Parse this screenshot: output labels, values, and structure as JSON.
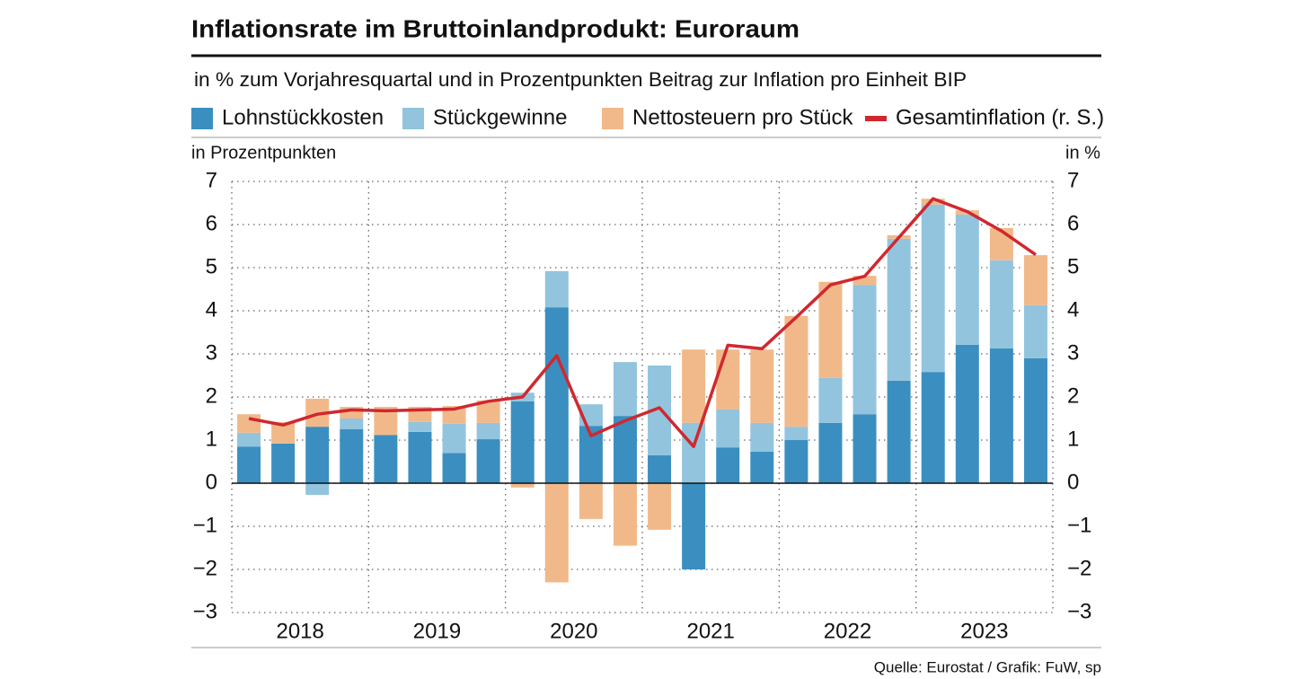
{
  "chart_data": {
    "type": "bar",
    "title": "Inflationsrate im Bruttoinlandprodukt: Euroraum",
    "subtitle": "in % zum Vorjahresquartal und in Prozentpunkten Beitrag zur Inflation pro Einheit BIP",
    "y_label": "in Prozentpunkten",
    "y2_label": "in %",
    "source": "Quelle: Eurostat / Grafik: FuW, sp",
    "x_labels": [
      "2018",
      "2019",
      "2020",
      "2021",
      "2022",
      "2023"
    ],
    "series": [
      {
        "name": "Lohnstückkosten",
        "color": "#3a8fc0",
        "values": [
          0.85,
          0.92,
          1.31,
          1.25,
          1.12,
          1.19,
          0.7,
          1.02,
          1.9,
          4.08,
          1.33,
          1.56,
          0.65,
          -2.0,
          0.83,
          0.73,
          1.0,
          1.4,
          1.6,
          2.38,
          2.58,
          3.21,
          3.13,
          2.9
        ]
      },
      {
        "name": "Stückgewinne",
        "color": "#92c4de",
        "values": [
          0.32,
          0,
          -0.27,
          0.25,
          0,
          0.23,
          0.68,
          0.38,
          0.2,
          0.84,
          0.5,
          1.25,
          2.08,
          1.4,
          0.88,
          0.67,
          0.31,
          1.04,
          3.0,
          3.29,
          3.88,
          3.02,
          2.04,
          1.23
        ]
      },
      {
        "name": "Nettosteuern pro Stück",
        "color": "#f1b98a",
        "values": [
          0.43,
          0.5,
          0.65,
          0.27,
          0.65,
          0.35,
          0.41,
          0.52,
          -0.1,
          -2.3,
          -0.83,
          -1.45,
          -1.08,
          1.7,
          1.39,
          1.7,
          2.57,
          2.23,
          0.21,
          0.08,
          0.14,
          0.1,
          0.75,
          1.16
        ]
      },
      {
        "name": "Gesamtinflation (r. S.)",
        "color": "#d0282e",
        "type": "line",
        "axis": "y2",
        "values": [
          1.5,
          1.35,
          1.6,
          1.7,
          1.68,
          1.7,
          1.72,
          1.9,
          2.0,
          2.96,
          1.1,
          1.45,
          1.75,
          0.85,
          3.2,
          3.12,
          3.85,
          4.6,
          4.8,
          5.7,
          6.6,
          6.3,
          5.85,
          5.3
        ]
      }
    ],
    "ylim": [
      -3,
      7
    ],
    "yticks": [
      {
        "value": -3,
        "label": "−3"
      },
      {
        "value": -2,
        "label": "−2"
      },
      {
        "value": -1,
        "label": "−1"
      },
      0,
      1,
      2,
      3,
      4,
      5,
      6,
      7
    ],
    "y2lim": [
      -3,
      7
    ],
    "y2ticks": [
      {
        "value": -3,
        "label": "−3"
      },
      {
        "value": -2,
        "label": "−2"
      },
      {
        "value": -1,
        "label": "−1"
      },
      0,
      1,
      2,
      3,
      4,
      5,
      6,
      7
    ],
    "grid": true,
    "stacked": true
  }
}
